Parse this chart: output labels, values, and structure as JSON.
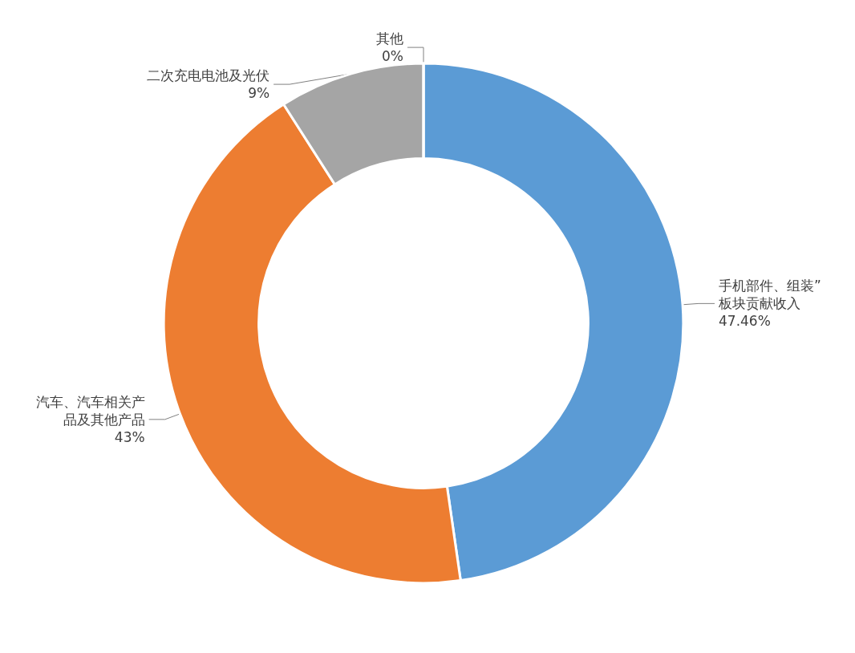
{
  "chart_data": {
    "type": "donut",
    "categories": [
      "手机部件、组装”板块贡献收入",
      "汽车、汽车相关产品及其他产品",
      "二次充电电池及光伏",
      "其他"
    ],
    "values": [
      47.46,
      43,
      9,
      0
    ],
    "value_labels": [
      "47.46%",
      "43%",
      "9%",
      "0%"
    ],
    "colors": [
      "#5b9bd5",
      "#ed7d31",
      "#a5a5a5",
      "#ffc000"
    ],
    "legend": false
  }
}
